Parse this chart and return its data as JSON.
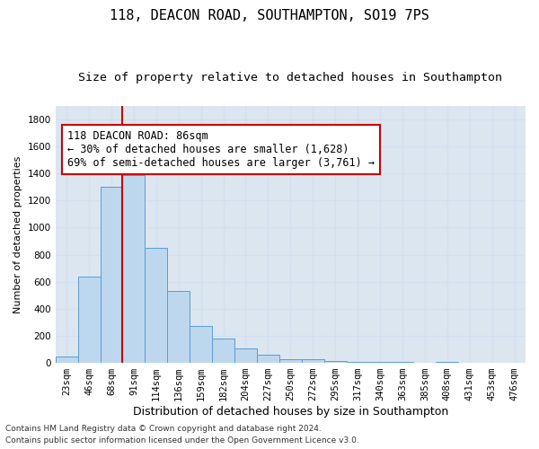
{
  "title": "118, DEACON ROAD, SOUTHAMPTON, SO19 7PS",
  "subtitle": "Size of property relative to detached houses in Southampton",
  "xlabel": "Distribution of detached houses by size in Southampton",
  "ylabel": "Number of detached properties",
  "categories": [
    "23sqm",
    "46sqm",
    "68sqm",
    "91sqm",
    "114sqm",
    "136sqm",
    "159sqm",
    "182sqm",
    "204sqm",
    "227sqm",
    "250sqm",
    "272sqm",
    "295sqm",
    "317sqm",
    "340sqm",
    "363sqm",
    "385sqm",
    "408sqm",
    "431sqm",
    "453sqm",
    "476sqm"
  ],
  "values": [
    50,
    640,
    1300,
    1390,
    850,
    530,
    270,
    180,
    105,
    60,
    30,
    25,
    15,
    10,
    5,
    5,
    3,
    5,
    2,
    1,
    1
  ],
  "bar_color": "#bdd7ee",
  "bar_edge_color": "#5b9bd5",
  "grid_color": "#d3dff0",
  "background_color": "#dce6f1",
  "red_line_color": "#cc0000",
  "annotation_line1": "118 DEACON ROAD: 86sqm",
  "annotation_line2": "← 30% of detached houses are smaller (1,628)",
  "annotation_line3": "69% of semi-detached houses are larger (3,761) →",
  "footer_line1": "Contains HM Land Registry data © Crown copyright and database right 2024.",
  "footer_line2": "Contains public sector information licensed under the Open Government Licence v3.0.",
  "ylim": [
    0,
    1900
  ],
  "yticks": [
    0,
    200,
    400,
    600,
    800,
    1000,
    1200,
    1400,
    1600,
    1800
  ],
  "title_fontsize": 11,
  "subtitle_fontsize": 9.5,
  "xlabel_fontsize": 9,
  "ylabel_fontsize": 8,
  "tick_fontsize": 7.5,
  "annotation_fontsize": 8.5,
  "footer_fontsize": 6.5
}
